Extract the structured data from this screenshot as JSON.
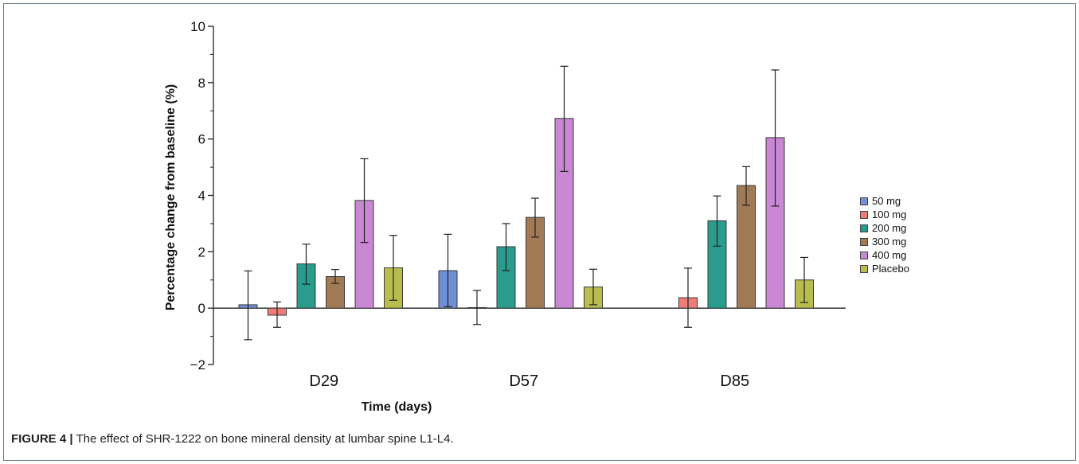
{
  "chart_data": {
    "type": "bar",
    "title": "",
    "xlabel": "Time (days)",
    "ylabel": "Percentage change from baseline (%)",
    "ylim": [
      -2,
      10
    ],
    "yticks": [
      -2,
      0,
      2,
      4,
      6,
      8,
      10
    ],
    "ytick_labels": [
      "−2",
      "0",
      "2",
      "4",
      "6",
      "8",
      "10"
    ],
    "categories": [
      "D29",
      "D57",
      "D85"
    ],
    "legend_position": "right",
    "series": [
      {
        "name": "50 mg",
        "color": "#6f8fd6",
        "values": [
          0.12,
          1.33,
          null
        ],
        "err_low": [
          -1.12,
          0.05,
          null
        ],
        "err_high": [
          1.32,
          2.62,
          null
        ]
      },
      {
        "name": "100 mg",
        "color": "#f07c78",
        "values": [
          -0.25,
          0.02,
          0.37
        ],
        "err_low": [
          -0.68,
          -0.58,
          -0.68
        ],
        "err_high": [
          0.22,
          0.63,
          1.42
        ]
      },
      {
        "name": "200 mg",
        "color": "#2a9c8e",
        "values": [
          1.57,
          2.18,
          3.1
        ],
        "err_low": [
          0.85,
          1.33,
          2.2
        ],
        "err_high": [
          2.27,
          3.0,
          3.98
        ]
      },
      {
        "name": "300 mg",
        "color": "#a27a55",
        "values": [
          1.12,
          3.22,
          4.35
        ],
        "err_low": [
          0.88,
          2.52,
          3.65
        ],
        "err_high": [
          1.37,
          3.9,
          5.02
        ]
      },
      {
        "name": "400 mg",
        "color": "#c987d4",
        "values": [
          3.82,
          6.73,
          6.05
        ],
        "err_low": [
          2.33,
          4.85,
          3.62
        ],
        "err_high": [
          5.3,
          8.58,
          8.45
        ]
      },
      {
        "name": "Placebo",
        "color": "#b8bd4e",
        "values": [
          1.43,
          0.75,
          1.0
        ],
        "err_low": [
          0.28,
          0.12,
          0.2
        ],
        "err_high": [
          2.58,
          1.38,
          1.8
        ]
      }
    ]
  },
  "caption": {
    "figure_label": "FIGURE 4 |",
    "text": " The effect of SHR-1222 on bone mineral density at lumbar spine L1-L4."
  }
}
